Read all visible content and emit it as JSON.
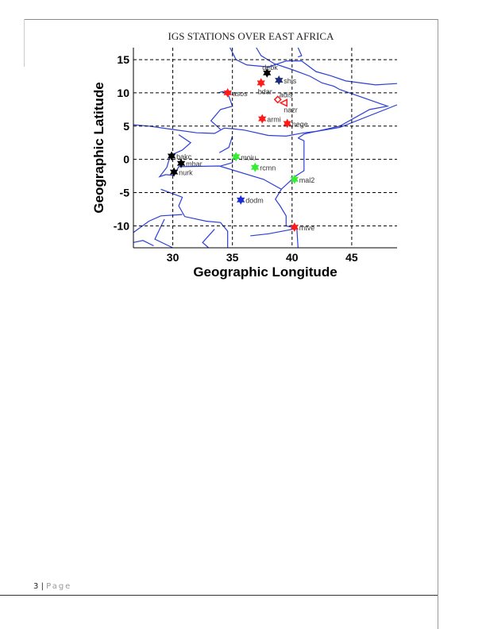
{
  "footer": {
    "page_number": "3",
    "separator": "|",
    "page_label": "Page"
  },
  "chart_data": {
    "type": "scatter",
    "title": "IGS STATIONS OVER EAST AFRICA",
    "xlabel": "Geographic Longitude",
    "ylabel": "Geographic Latitude",
    "xlim": [
      26.7,
      48.8
    ],
    "ylim": [
      -13.3,
      16.8
    ],
    "xticks": [
      "30",
      "35",
      "40",
      "45"
    ],
    "xtick_values": [
      30,
      35,
      40,
      45
    ],
    "yticks": [
      "15",
      "10",
      "5",
      "0",
      "-5",
      "-10"
    ],
    "ytick_values": [
      15,
      10,
      5,
      0,
      -5,
      -10
    ],
    "grid": true,
    "line_color": "#2b3fd6",
    "stations": [
      {
        "name": "debk",
        "lon": 37.9,
        "lat": 13.0,
        "color": "#000000",
        "marker": "star"
      },
      {
        "name": "shis",
        "lon": 38.9,
        "lat": 11.9,
        "color": "#1a2d7a",
        "marker": "star"
      },
      {
        "name": "bdar",
        "lon": 37.4,
        "lat": 11.5,
        "color": "#ff1a1a",
        "marker": "star"
      },
      {
        "name": "asos",
        "lon": 34.6,
        "lat": 10.0,
        "color": "#ff1a1a",
        "marker": "star"
      },
      {
        "name": "adis",
        "lon": 38.8,
        "lat": 9.0,
        "color": "#ff1a1a",
        "marker": "diamond"
      },
      {
        "name": "nazr",
        "lon": 39.3,
        "lat": 8.5,
        "color": "#ff1a1a",
        "marker": "triangle"
      },
      {
        "name": "armi",
        "lon": 37.5,
        "lat": 6.1,
        "color": "#ff1a1a",
        "marker": "star"
      },
      {
        "name": "nege",
        "lon": 39.6,
        "lat": 5.4,
        "color": "#ff1a1a",
        "marker": "star"
      },
      {
        "name": "bakc",
        "lon": 29.9,
        "lat": 0.5,
        "color": "#000000",
        "marker": "star"
      },
      {
        "name": "mbar",
        "lon": 30.7,
        "lat": -0.6,
        "color": "#000000",
        "marker": "star"
      },
      {
        "name": "nurk",
        "lon": 30.1,
        "lat": -1.9,
        "color": "#000000",
        "marker": "star"
      },
      {
        "name": "moiu",
        "lon": 35.3,
        "lat": 0.4,
        "color": "#33ee33",
        "marker": "star"
      },
      {
        "name": "rcmn",
        "lon": 36.9,
        "lat": -1.2,
        "color": "#33ee33",
        "marker": "star"
      },
      {
        "name": "mal2",
        "lon": 40.2,
        "lat": -3.0,
        "color": "#33ee33",
        "marker": "star"
      },
      {
        "name": "dodm",
        "lon": 35.7,
        "lat": -6.1,
        "color": "#1a2dd6",
        "marker": "star"
      },
      {
        "name": "mtve",
        "lon": 40.2,
        "lat": -10.2,
        "color": "#ff1a1a",
        "marker": "star"
      }
    ]
  }
}
